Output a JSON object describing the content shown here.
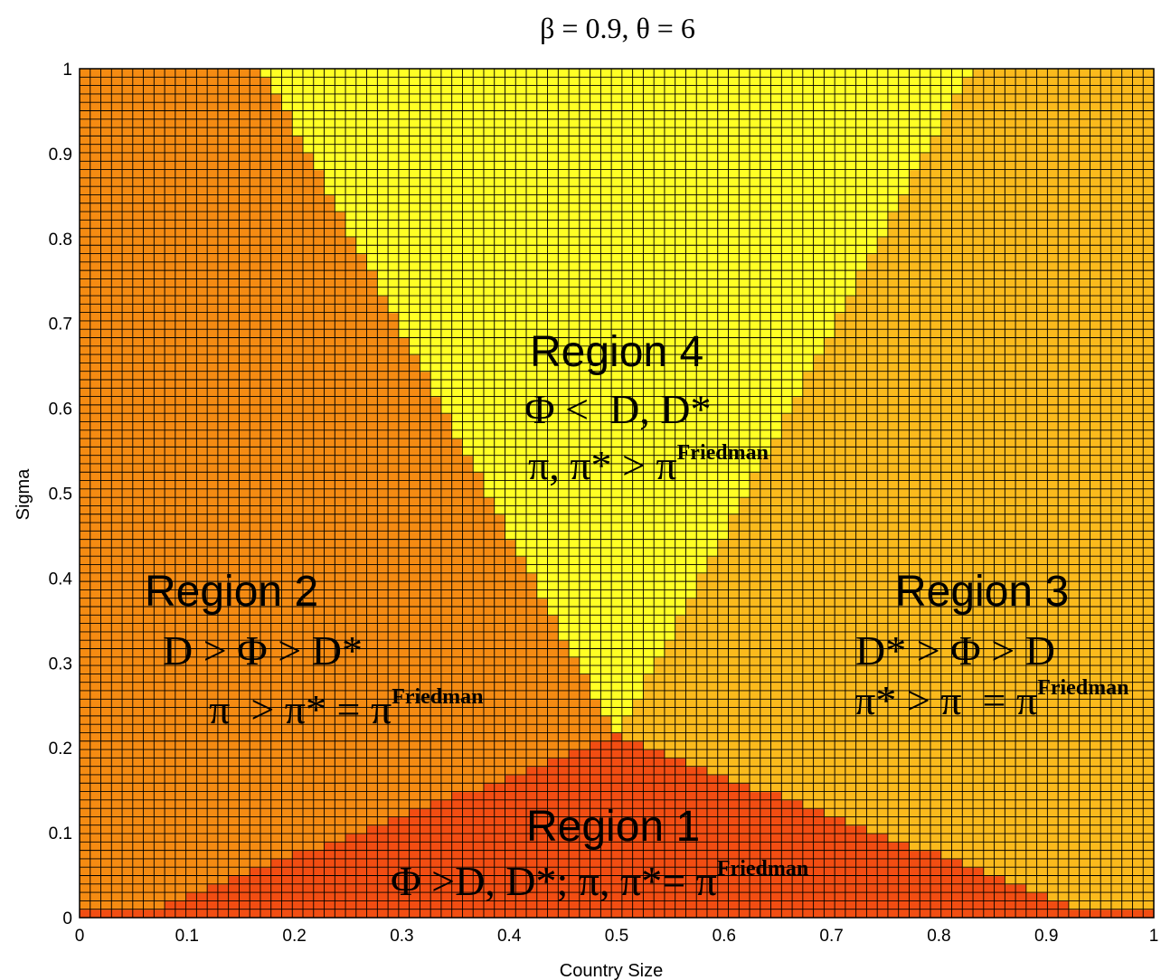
{
  "chart_data": {
    "type": "heatmap",
    "title": "β = 0.9, θ = 6",
    "xlabel": "Country Size",
    "ylabel": "Sigma",
    "xlim": [
      0,
      1
    ],
    "ylim": [
      0,
      1
    ],
    "xticks": [
      "0",
      "0.1",
      "0.2",
      "0.3",
      "0.4",
      "0.5",
      "0.6",
      "0.7",
      "0.8",
      "0.9",
      "1"
    ],
    "yticks": [
      "0",
      "0.1",
      "0.2",
      "0.3",
      "0.4",
      "0.5",
      "0.6",
      "0.7",
      "0.8",
      "0.9",
      "1"
    ],
    "grid": {
      "nx": 101,
      "ny": 101,
      "line_color": "#000000"
    },
    "region_colors": {
      "region1": "#f24d12",
      "region2": "#f58b12",
      "region3": "#fbba1c",
      "region4": "#ffff24"
    },
    "boundaries": {
      "region1_peak": {
        "x": 0.5,
        "sigma": 0.21
      },
      "region1_base_halfwidth": 0.45,
      "region4_halfwidth_at_sigma_1": 0.33,
      "region4_vertex": {
        "x": 0.5,
        "sigma": 0.21
      }
    },
    "regions": [
      {
        "id": "region4",
        "name": "Region 4",
        "line1": "Φ <  D, D*",
        "line2_main": "π, π* > π",
        "line2_sup": "Friedman"
      },
      {
        "id": "region2",
        "name": "Region 2",
        "line1": "D > Φ > D*",
        "line2_main": "π  > π* = π",
        "line2_sup": "Friedman"
      },
      {
        "id": "region3",
        "name": "Region 3",
        "line1": "D* > Φ > D",
        "line2_main": "π* > π  = π",
        "line2_sup": "Friedman"
      },
      {
        "id": "region1",
        "name": "Region 1",
        "line1_main": "Φ >D, D*; π, π*= π",
        "line1_sup": "Friedman"
      }
    ]
  }
}
